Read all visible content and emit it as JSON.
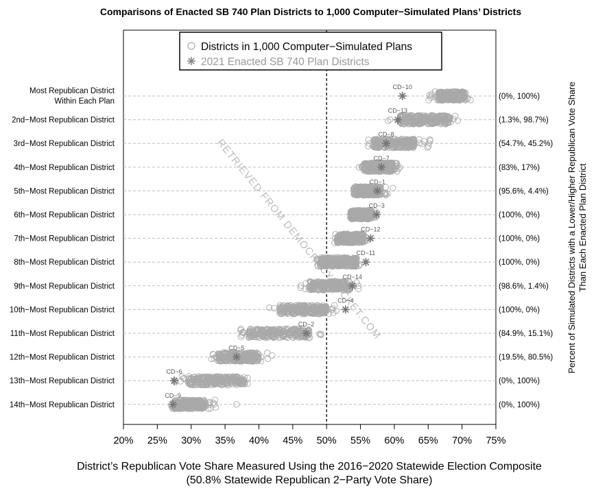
{
  "chart_data": {
    "type": "scatter",
    "title": "Comparisons of Enacted SB 740 Plan Districts to 1,000 Computer−Simulated Plans’ Districts",
    "xlabel_line1": "District’s Republican Vote Share Measured Using the 2016−2020 Statewide Election Composite",
    "xlabel_line2": "(50.8% Statewide Republican 2−Party Vote Share)",
    "ylabel_line1": "Percent of Simulated Districts with a Lower/Higher Republican Vote Share",
    "ylabel_line2": "Than Each Enacted Plan District",
    "xlim": [
      20,
      75
    ],
    "x_ticks": [
      "20%",
      "25%",
      "30%",
      "35%",
      "40%",
      "45%",
      "50%",
      "55%",
      "60%",
      "65%",
      "70%",
      "75%"
    ],
    "reference_line": 50,
    "legend": {
      "placement": "top-center",
      "entries": [
        {
          "marker": "circle",
          "label": "Districts in 1,000 Computer−Simulated Plans"
        },
        {
          "marker": "asterisk",
          "label": "2021 Enacted SB 740 Plan Districts"
        }
      ]
    },
    "watermark": "RETRIEVED FROM DEMOCRACYDOCKET.COM",
    "rows": [
      {
        "label": "Most Republican District",
        "label2": "Within Each Plan",
        "sim_min": 65.0,
        "sim_max": 71.5,
        "core_min": 66.5,
        "core_max": 70.5,
        "enacted": 61.2,
        "cd": "CD−10",
        "pct": "(0%, 100%)"
      },
      {
        "label": "2nd−Most Republican District",
        "sim_min": 59.0,
        "sim_max": 69.8,
        "core_min": 60.8,
        "core_max": 68.3,
        "enacted": 60.5,
        "cd": "CD−13",
        "pct": "(1.3%, 98.7%)"
      },
      {
        "label": "3rd−Most Republican District",
        "sim_min": 56.0,
        "sim_max": 65.8,
        "core_min": 57.0,
        "core_max": 63.0,
        "enacted": 58.8,
        "cd": "CD−8",
        "pct": "(54.7%, 45.2%)"
      },
      {
        "label": "4th−Most Republican District",
        "sim_min": 54.6,
        "sim_max": 61.0,
        "core_min": 55.5,
        "core_max": 59.8,
        "enacted": 58.1,
        "cd": "CD−7",
        "pct": "(83%, 17%)"
      },
      {
        "label": "5th−Most Republican District",
        "sim_min": 53.7,
        "sim_max": 59.8,
        "core_min": 54.0,
        "core_max": 58.0,
        "enacted": 57.5,
        "cd": "CD−1",
        "pct": "(95.6%, 4.4%)"
      },
      {
        "label": "6th−Most Republican District",
        "sim_min": 53.5,
        "sim_max": 57.5,
        "core_min": 53.5,
        "core_max": 56.8,
        "enacted": 57.4,
        "cd": "CD−3",
        "pct": "(100%, 0%)"
      },
      {
        "label": "7th−Most Republican District",
        "sim_min": 51.0,
        "sim_max": 56.2,
        "core_min": 51.5,
        "core_max": 55.5,
        "enacted": 56.5,
        "cd": "CD−12",
        "pct": "(100%, 0%)"
      },
      {
        "label": "8th−Most Republican District",
        "sim_min": 48.5,
        "sim_max": 55.2,
        "core_min": 49.0,
        "core_max": 54.5,
        "enacted": 55.8,
        "cd": "CD−11",
        "pct": "(100%, 0%)"
      },
      {
        "label": "9th−Most Republican District",
        "sim_min": 46.0,
        "sim_max": 55.0,
        "core_min": 47.5,
        "core_max": 53.5,
        "enacted": 53.8,
        "cd": "CD−14",
        "pct": "(98.6%, 1.4%)"
      },
      {
        "label": "10th−Most Republican District",
        "sim_min": 41.5,
        "sim_max": 51.5,
        "core_min": 43.0,
        "core_max": 50.0,
        "enacted": 52.8,
        "cd": "CD−4",
        "pct": "(100%, 0%)"
      },
      {
        "label": "11th−Most Republican District",
        "sim_min": 37.0,
        "sim_max": 49.2,
        "core_min": 38.5,
        "core_max": 47.5,
        "enacted": 47.0,
        "cd": "CD−2",
        "pct": "(84.9%, 15.1%)"
      },
      {
        "label": "12th−Most Republican District",
        "sim_min": 32.8,
        "sim_max": 42.2,
        "core_min": 34.0,
        "core_max": 40.0,
        "enacted": 36.7,
        "cd": "CD−5",
        "pct": "(19.5%, 80.5%)"
      },
      {
        "label": "13th−Most Republican District",
        "sim_min": 27.5,
        "sim_max": 38.6,
        "core_min": 29.5,
        "core_max": 38.0,
        "enacted": 27.5,
        "cd": "CD−6",
        "pct": "(0%, 100%)"
      },
      {
        "label": "14th−Most Republican District",
        "sim_min": 27.0,
        "sim_max": 33.7,
        "core_min": 27.5,
        "core_max": 32.0,
        "enacted": 27.3,
        "cd": "CD−9",
        "pct": "(0%, 100%)",
        "outlier": 36.7
      }
    ]
  }
}
